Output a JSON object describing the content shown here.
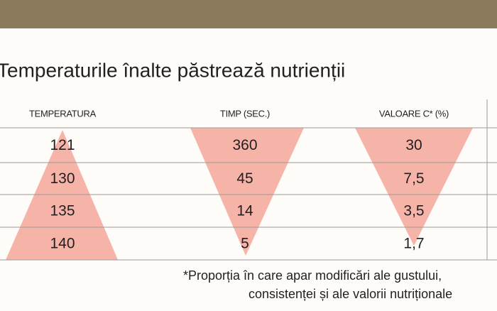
{
  "title": "Temperaturile înalte păstrează nutrienții",
  "table": {
    "headers": [
      "TEMPERATURA",
      "TIMP (SEC.)",
      "VALOARE C* (%)"
    ],
    "rows": [
      [
        "121",
        "360",
        "30"
      ],
      [
        "130",
        "45",
        "7,5"
      ],
      [
        "135",
        "14",
        "3,5"
      ],
      [
        "140",
        "5",
        "1,7"
      ]
    ]
  },
  "footnote": [
    "*Proporția în care apar modificări ale gustului,",
    "consistenței și ale valorii nutriționale"
  ]
}
